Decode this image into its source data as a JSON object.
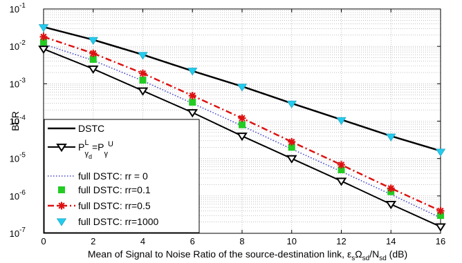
{
  "chart_data": {
    "type": "line",
    "title": "",
    "xlabel_main": "Mean of Signal to Noise Ratio of the source-destination link, ",
    "xlabel_math": {
      "eps": "ε",
      "eps_sub": "s",
      "omega": "Ω",
      "omega_sub": "sd",
      "slash_n": "/N",
      "n_sub": "sd",
      "unit": " (dB)"
    },
    "ylabel": "BER",
    "y_scale": "log",
    "xlim": [
      0,
      16
    ],
    "ylim": [
      1e-07,
      0.1
    ],
    "x_ticks": [
      0,
      2,
      4,
      6,
      8,
      10,
      12,
      14,
      16
    ],
    "y_ticks": [
      {
        "value": 1e-07,
        "base": "10",
        "exp": "-7"
      },
      {
        "value": 1e-06,
        "base": "10",
        "exp": "-6"
      },
      {
        "value": 1e-05,
        "base": "10",
        "exp": "-5"
      },
      {
        "value": 0.0001,
        "base": "10",
        "exp": "-4"
      },
      {
        "value": 0.001,
        "base": "10",
        "exp": "-3"
      },
      {
        "value": 0.01,
        "base": "10",
        "exp": "-2"
      },
      {
        "value": 0.1,
        "base": "10",
        "exp": "-1"
      }
    ],
    "grid": true,
    "legend_position": "bottom-left",
    "x": [
      0,
      2,
      4,
      6,
      8,
      10,
      12,
      14,
      16
    ],
    "series": [
      {
        "name": "DSTC",
        "legend": {
          "text": "DSTC"
        },
        "color": "#000000",
        "line": "solid",
        "width": 2.5,
        "marker": "none",
        "values": [
          0.033,
          0.015,
          0.006,
          0.0022,
          0.00085,
          0.0003,
          0.00011,
          4e-05,
          1.6e-05
        ]
      },
      {
        "name": "P^L_γd = P^U_γ",
        "legend": {
          "p": "P",
          "sup1": "L",
          "sub1": "γ",
          "subsub1": "d",
          "eq": "=P",
          "sub2": "γ",
          "sup2": "U"
        },
        "color": "#000000",
        "line": "solid",
        "width": 2,
        "marker": "triangle-down",
        "values": [
          0.0085,
          0.0025,
          0.00065,
          0.00017,
          4e-05,
          1e-05,
          2.5e-06,
          6e-07,
          1.5e-07
        ]
      },
      {
        "name": "full DSTC: rr = 0",
        "legend": {
          "text": "full DSTC: rr = 0"
        },
        "color": "#4444cc",
        "line": "dotted",
        "width": 1.6,
        "marker": "none",
        "values": [
          0.0115,
          0.0042,
          0.0012,
          0.0003,
          7.5e-05,
          1.8e-05,
          4.5e-06,
          1.1e-06,
          2.6e-07
        ]
      },
      {
        "name": "full DSTC: rr=0.1",
        "legend": {
          "text": "full DSTC: rr=0.1"
        },
        "color": "#22cc22",
        "line": "none",
        "width": 0,
        "marker": "square",
        "values": [
          0.013,
          0.0045,
          0.00125,
          0.00032,
          8e-05,
          2e-05,
          5e-06,
          1.3e-06,
          3e-07
        ]
      },
      {
        "name": "full DSTC: rr=0.5",
        "legend": {
          "text": "full DSTC: rr=0.5"
        },
        "color": "#dd1111",
        "line": "dashdot",
        "width": 2.5,
        "marker": "asterisk",
        "values": [
          0.018,
          0.0065,
          0.0019,
          0.00048,
          0.00012,
          2.8e-05,
          6.8e-06,
          1.6e-06,
          4e-07
        ]
      },
      {
        "name": "full DSTC: rr=1000",
        "legend": {
          "text": "full DSTC: rr=1000"
        },
        "color": "#22ccee",
        "line": "none",
        "width": 0,
        "marker": "triangle-down-filled",
        "values": [
          0.032,
          0.0145,
          0.0058,
          0.0022,
          0.00082,
          0.00029,
          0.000105,
          3.8e-05,
          1.5e-05
        ]
      }
    ]
  }
}
